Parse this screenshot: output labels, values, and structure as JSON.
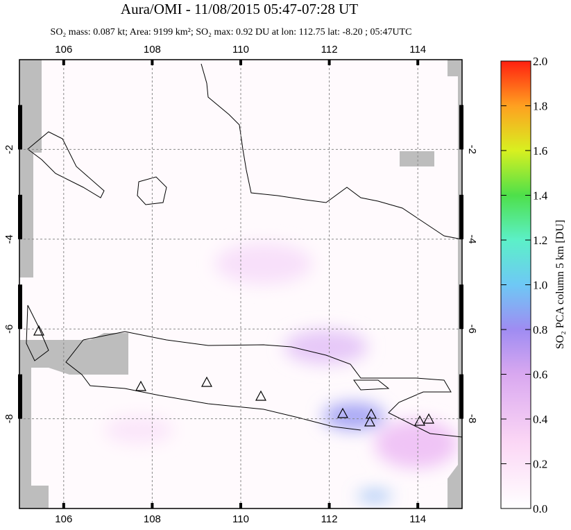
{
  "title": "Aura/OMI - 11/08/2015 05:47-07:28 UT",
  "subtitle": "SO₂ mass: 0.087 kt; Area: 9199 km²; SO₂ max: 0.92 DU at lon: 112.75 lat: -8.20 ; 05:47UTC",
  "map": {
    "xlim": [
      105,
      115
    ],
    "ylim": [
      -10,
      0
    ],
    "xticks": [
      106,
      108,
      110,
      112,
      114
    ],
    "yticks": [
      -2,
      -4,
      -6,
      -8
    ]
  },
  "colorbar": {
    "label": "SO₂ PCA column 5 km [DU]",
    "lim": [
      0,
      2
    ],
    "ticks": [
      {
        "value": 0,
        "label": "0.0"
      },
      0.2,
      0.4,
      0.6,
      0.8,
      {
        "value": 1,
        "label": "1.0"
      },
      1.2,
      1.4,
      1.6,
      1.8,
      {
        "value": 2,
        "label": "2.0"
      }
    ]
  }
}
